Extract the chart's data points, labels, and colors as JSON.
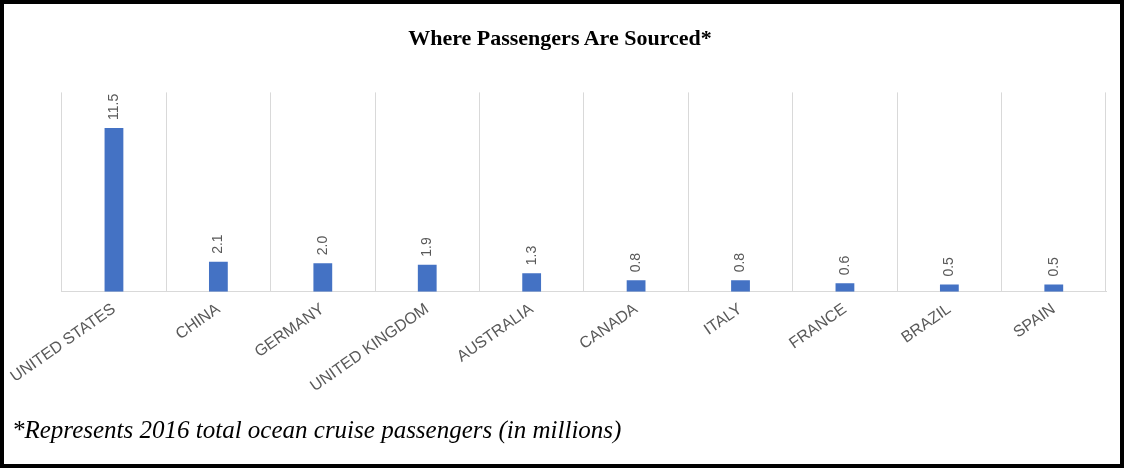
{
  "chart_data": {
    "type": "bar",
    "title": "Where Passengers Are Sourced*",
    "categories": [
      "UNITED STATES",
      "CHINA",
      "GERMANY",
      "UNITED KINGDOM",
      "AUSTRALIA",
      "CANADA",
      "ITALY",
      "FRANCE",
      "BRAZIL",
      "SPAIN"
    ],
    "values": [
      11.5,
      2.1,
      2.0,
      1.9,
      1.3,
      0.8,
      0.8,
      0.6,
      0.5,
      0.5
    ],
    "value_labels": [
      "11.5",
      "2.1",
      "2.0",
      "1.9",
      "1.3",
      "0.8",
      "0.8",
      "0.6",
      "0.5",
      "0.5"
    ],
    "color": "#4472c4",
    "ylim": [
      0,
      14
    ],
    "grid": "x",
    "tick_labels": "x",
    "annotations": [
      "*Represents 2016 total ocean cruise passengers (in millions)"
    ]
  }
}
